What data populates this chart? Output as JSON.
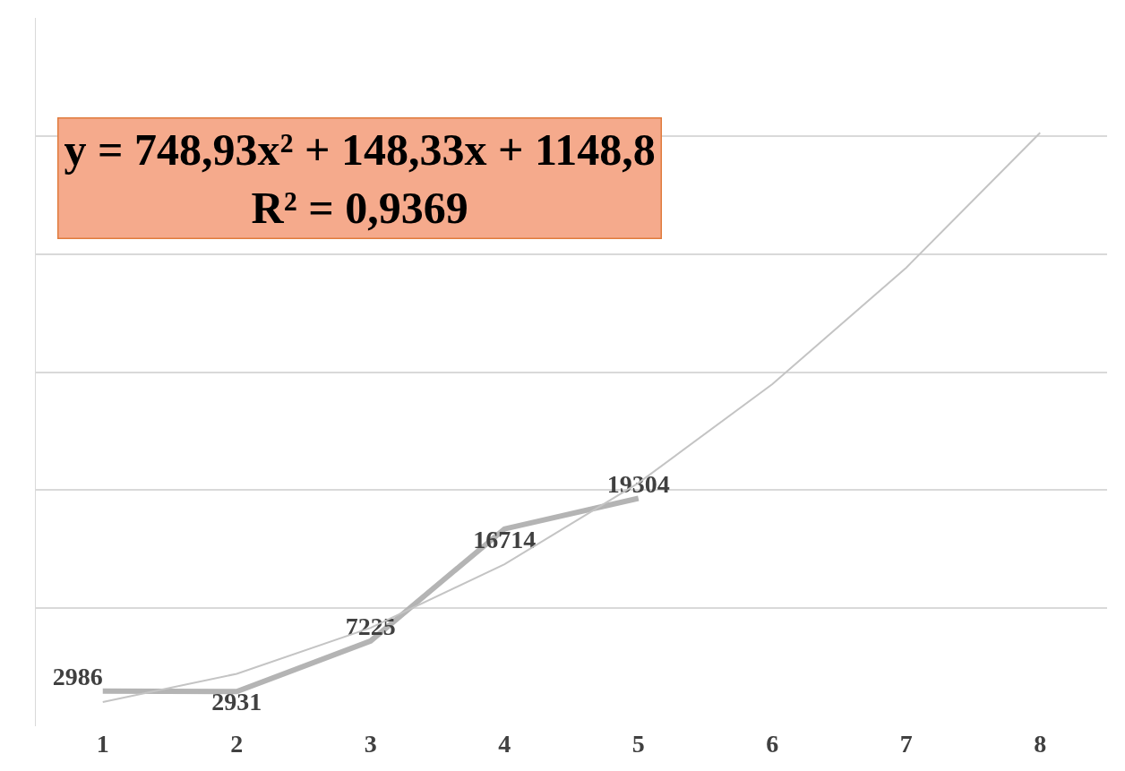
{
  "chart_data": {
    "type": "line",
    "x": [
      1,
      2,
      3,
      4,
      5
    ],
    "xlim": [
      0.5,
      8.5
    ],
    "xticks": [
      1,
      2,
      3,
      4,
      5,
      6,
      7,
      8
    ],
    "ylim": [
      0,
      60000
    ],
    "tick_labels": "x",
    "grid": "y",
    "series": [
      {
        "color": "#b4b4b4",
        "values": [
          2986,
          2931,
          7225,
          16714,
          19304
        ],
        "value_labels": [
          "2986",
          "2931",
          "7225",
          "16714",
          "19304"
        ]
      },
      {
        "type": "line",
        "color": "#c4c4c4",
        "x": [
          1,
          2,
          3,
          4,
          5,
          6,
          7,
          8
        ],
        "values": [
          2050,
          4440,
          8330,
          13720,
          20600,
          28970,
          38840,
          50270
        ]
      }
    ],
    "annotations": [
      "y = 748,93x² + 148,33x + 1148,8",
      "R² = 0,9369"
    ]
  }
}
